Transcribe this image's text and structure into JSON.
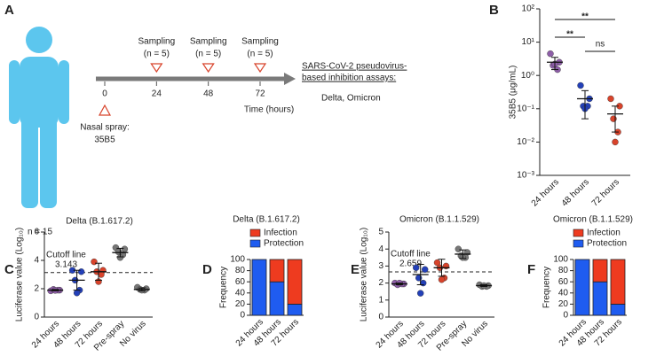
{
  "timeline": {
    "panel_label": "A",
    "subject": "n = 15",
    "times": [
      0,
      24,
      48,
      72
    ],
    "time_label": "Time (hours)",
    "sampling": [
      {
        "time": 24,
        "label": "Sampling",
        "n": "(n = 5)"
      },
      {
        "time": 48,
        "label": "Sampling",
        "n": "(n = 5)"
      },
      {
        "time": 72,
        "label": "Sampling",
        "n": "(n = 5)"
      }
    ],
    "spray": {
      "time": 0,
      "label": "Nasal spray:",
      "agent": "35B5"
    },
    "assay": {
      "lines": [
        "SARS-CoV-2 pseudovirus-",
        "based inhibition assays:"
      ],
      "variants": "Delta, Omicron"
    }
  },
  "chart_data": [
    {
      "type": "dot",
      "panel_label": "B",
      "y_label": "35B5 (μg/mL)",
      "log_y": true,
      "categories": [
        "24 hours",
        "48 hours",
        "72 hours"
      ],
      "colors": [
        "#8e5ea8",
        "#2340b8",
        "#d8432b"
      ],
      "points": [
        [
          4.5,
          2.5,
          2.0,
          1.5,
          2.2
        ],
        [
          0.5,
          0.2,
          0.12,
          0.12,
          0.1
        ],
        [
          0.2,
          0.12,
          0.05,
          0.02,
          0.01
        ]
      ],
      "means": [
        2.5,
        0.2,
        0.07
      ],
      "errors": [
        1.0,
        0.15,
        0.05
      ],
      "ylim": [
        0.001,
        100
      ],
      "yticks": [
        {
          "value": 0.001,
          "label": "10⁻³"
        },
        {
          "value": 0.01,
          "label": "10⁻²"
        },
        {
          "value": 0.1,
          "label": "10⁻¹"
        },
        {
          "value": 1,
          "label": "10⁰"
        },
        {
          "value": 10,
          "label": "10¹"
        },
        {
          "value": 100,
          "label": "10²"
        }
      ],
      "comparisons": [
        {
          "from": 0,
          "to": 1,
          "label": "**"
        },
        {
          "from": 0,
          "to": 2,
          "label": "**"
        },
        {
          "from": 1,
          "to": 2,
          "label": "ns"
        }
      ]
    },
    {
      "type": "dot",
      "panel_label": "C",
      "title": "Delta (B.1.617.2)",
      "y_label": "Luciferase value (Log₁₀)",
      "categories": [
        "24 hours",
        "48 hours",
        "72 hours",
        "Pre-spray",
        "No virus"
      ],
      "colors": [
        "#8e5ea8",
        "#2340b8",
        "#d8432b",
        "#777777",
        "#777777"
      ],
      "points": [
        [
          1.85,
          1.9,
          1.95,
          1.9,
          1.88
        ],
        [
          3.3,
          3.2,
          2.6,
          1.9,
          1.7
        ],
        [
          3.9,
          3.3,
          3.2,
          3.0,
          2.5
        ],
        [
          4.9,
          4.8,
          4.6,
          4.4,
          4.2
        ],
        [
          2.1,
          2.0,
          1.95,
          1.9,
          1.9
        ]
      ],
      "means": [
        1.9,
        2.6,
        3.2,
        4.55,
        1.95
      ],
      "errors": [
        0.05,
        0.7,
        0.6,
        0.3,
        0.1
      ],
      "ylim": [
        0,
        6
      ],
      "yticks": [
        0,
        2,
        4,
        6
      ],
      "cutoff": {
        "value": 3.143,
        "label": "Cutoff line"
      }
    },
    {
      "type": "stacked_bar",
      "panel_label": "D",
      "title": "Delta (B.1.617.2)",
      "y_label": "Frequency",
      "categories": [
        "24 hours",
        "48 hours",
        "72 hours"
      ],
      "series": [
        {
          "name": "Infection",
          "color": "#ee3b1f",
          "values": [
            0,
            40,
            80
          ]
        },
        {
          "name": "Protection",
          "color": "#1f5cf0",
          "values": [
            100,
            60,
            20
          ]
        }
      ],
      "ylim": [
        0,
        100
      ],
      "yticks": [
        0,
        20,
        40,
        60,
        80,
        100
      ]
    },
    {
      "type": "dot",
      "panel_label": "E",
      "title": "Omicron (B.1.1.529)",
      "y_label": "Luciferase value (Log₁₀)",
      "categories": [
        "24 hours",
        "48 hours",
        "72 hours",
        "Pre-spray",
        "No virus"
      ],
      "colors": [
        "#8e5ea8",
        "#2340b8",
        "#d8432b",
        "#777777",
        "#777777"
      ],
      "points": [
        [
          2.0,
          1.95,
          1.9,
          1.95,
          2.0
        ],
        [
          2.9,
          2.8,
          2.3,
          2.0,
          1.4
        ],
        [
          3.2,
          3.0,
          2.9,
          2.3,
          2.2
        ],
        [
          4.0,
          3.8,
          3.6,
          3.5,
          3.5
        ],
        [
          1.9,
          1.85,
          1.8,
          1.8,
          1.85
        ]
      ],
      "means": [
        1.95,
        2.5,
        2.9,
        3.7,
        1.85
      ],
      "errors": [
        0.05,
        0.6,
        0.5,
        0.25,
        0.05
      ],
      "ylim": [
        0,
        5
      ],
      "yticks": [
        0,
        1,
        2,
        3,
        4,
        5
      ],
      "cutoff": {
        "value": 2.659,
        "label": "Cutoff line"
      }
    },
    {
      "type": "stacked_bar",
      "panel_label": "F",
      "title": "Omicron (B.1.1.529)",
      "y_label": "Frequency",
      "categories": [
        "24 hours",
        "48 hours",
        "72 hours"
      ],
      "series": [
        {
          "name": "Infection",
          "color": "#ee3b1f",
          "values": [
            0,
            40,
            80
          ]
        },
        {
          "name": "Protection",
          "color": "#1f5cf0",
          "values": [
            100,
            60,
            20
          ]
        }
      ],
      "ylim": [
        0,
        100
      ],
      "yticks": [
        0,
        20,
        40,
        60,
        80,
        100
      ]
    }
  ]
}
